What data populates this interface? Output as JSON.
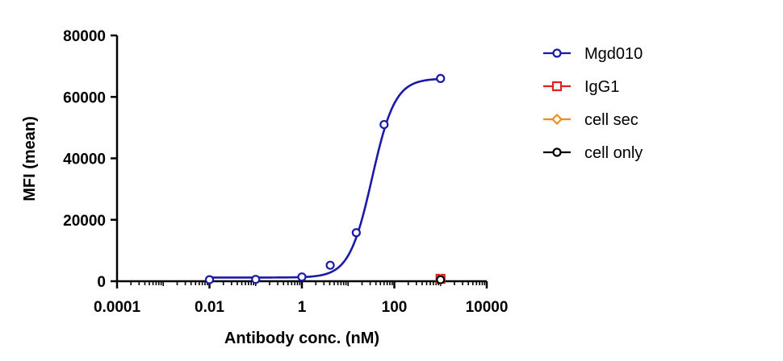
{
  "chart_data": {
    "type": "scatter",
    "title": "",
    "xlabel": "Antibody conc. (nM)",
    "ylabel": "MFI (mean)",
    "xscale": "log",
    "xlim": [
      0.0001,
      10000
    ],
    "ylim": [
      0,
      80000
    ],
    "x_ticks": [
      0.0001,
      0.01,
      1,
      100,
      10000
    ],
    "x_tick_labels": [
      "0.0001",
      "0.01",
      "1",
      "100",
      "10000"
    ],
    "y_ticks": [
      0,
      20000,
      40000,
      60000,
      80000
    ],
    "y_tick_labels": [
      "0",
      "20000",
      "40000",
      "60000",
      "80000"
    ],
    "grid": false,
    "legend_position": "right",
    "series": [
      {
        "name": "Mgd010",
        "color": "#1a1aa6",
        "marker": "circle",
        "fit": "sigmoidal",
        "fit_params": {
          "bottom": 1200,
          "top": 66000,
          "ec50": 33,
          "hill": 1.75
        },
        "points": [
          {
            "x": 0.01,
            "y": 500
          },
          {
            "x": 0.1,
            "y": 600
          },
          {
            "x": 1,
            "y": 1400
          },
          {
            "x": 4.1,
            "y": 5200
          },
          {
            "x": 15,
            "y": 15800
          },
          {
            "x": 60,
            "y": 51000
          },
          {
            "x": 1000,
            "y": 66000
          }
        ]
      },
      {
        "name": "IgG1",
        "color": "#e02020",
        "marker": "square",
        "points": [
          {
            "x": 1000,
            "y": 800
          }
        ]
      },
      {
        "name": "cell sec",
        "color": "#f08c1c",
        "marker": "diamond",
        "points": [
          {
            "x": 1000,
            "y": 600
          }
        ]
      },
      {
        "name": "cell only",
        "color": "#000000",
        "marker": "circle",
        "points": [
          {
            "x": 1000,
            "y": 500
          }
        ]
      }
    ]
  }
}
